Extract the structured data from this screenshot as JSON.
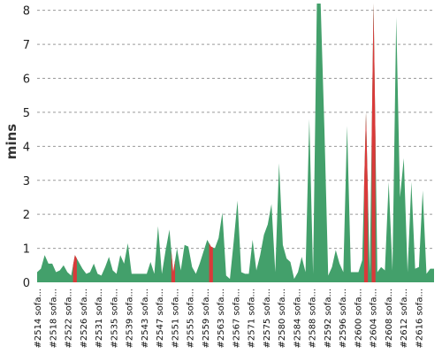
{
  "chart_data": {
    "type": "area",
    "title": "",
    "ylabel": "mins",
    "xlabel": "",
    "ylim": [
      0,
      8.2
    ],
    "yticks": [
      0,
      1,
      2,
      3,
      4,
      5,
      6,
      7,
      8
    ],
    "grid": true,
    "legend": "none",
    "colors": {
      "pass": "#43a06b",
      "fail": "#d93a3a"
    },
    "x_tick_labels": [
      "#2514 sofa...",
      "#2518 sofa...",
      "#2522 sofa...",
      "#2526 sofa...",
      "#2531 sofa...",
      "#2535 sofa...",
      "#2539 sofa...",
      "#2543 sofa...",
      "#2547 sofa...",
      "#2551 sofa...",
      "#2555 sofa...",
      "#2559 sofa...",
      "#2563 sofa...",
      "#2567 sofa...",
      "#2571 sofa...",
      "#2575 sofa...",
      "#2580 sofa...",
      "#2584 sofa...",
      "#2588 sofa...",
      "#2592 sofa...",
      "#2596 sofa...",
      "#2600 sofa...",
      "#2604 sofa...",
      "#2608 sofa...",
      "#2612 sofa...",
      "#2616 sofa..."
    ],
    "values": [
      0.3,
      0.4,
      0.8,
      0.55,
      0.55,
      0.3,
      0.35,
      0.5,
      0.3,
      0.2,
      0.8,
      0.6,
      0.4,
      0.25,
      0.3,
      0.55,
      0.25,
      0.2,
      0.45,
      0.75,
      0.35,
      0.25,
      0.8,
      0.55,
      1.15,
      0.25,
      0.25,
      0.25,
      0.25,
      0.25,
      0.6,
      0.25,
      1.65,
      0.25,
      0.95,
      1.55,
      0.3,
      1.0,
      0.35,
      1.1,
      1.05,
      0.45,
      0.25,
      0.55,
      0.9,
      1.25,
      1.05,
      1.0,
      1.3,
      2.05,
      0.2,
      0.1,
      1.2,
      2.4,
      0.3,
      0.25,
      0.25,
      1.25,
      0.35,
      0.8,
      1.4,
      1.7,
      2.3,
      0.3,
      3.5,
      1.1,
      0.7,
      0.6,
      0.1,
      0.3,
      0.75,
      0.3,
      4.8,
      0.25,
      8.2,
      8.2,
      4.5,
      0.2,
      0.45,
      0.95,
      0.55,
      0.3,
      4.6,
      0.3,
      0.3,
      0.3,
      0.65,
      5.0,
      0.25,
      8.2,
      0.3,
      0.45,
      0.35,
      2.95,
      0.35,
      7.8,
      2.5,
      3.65,
      0.3,
      2.95,
      0.4,
      0.45,
      2.7,
      0.25,
      0.4,
      0.4
    ],
    "failed_indices": [
      10,
      36,
      46,
      87,
      89
    ]
  }
}
